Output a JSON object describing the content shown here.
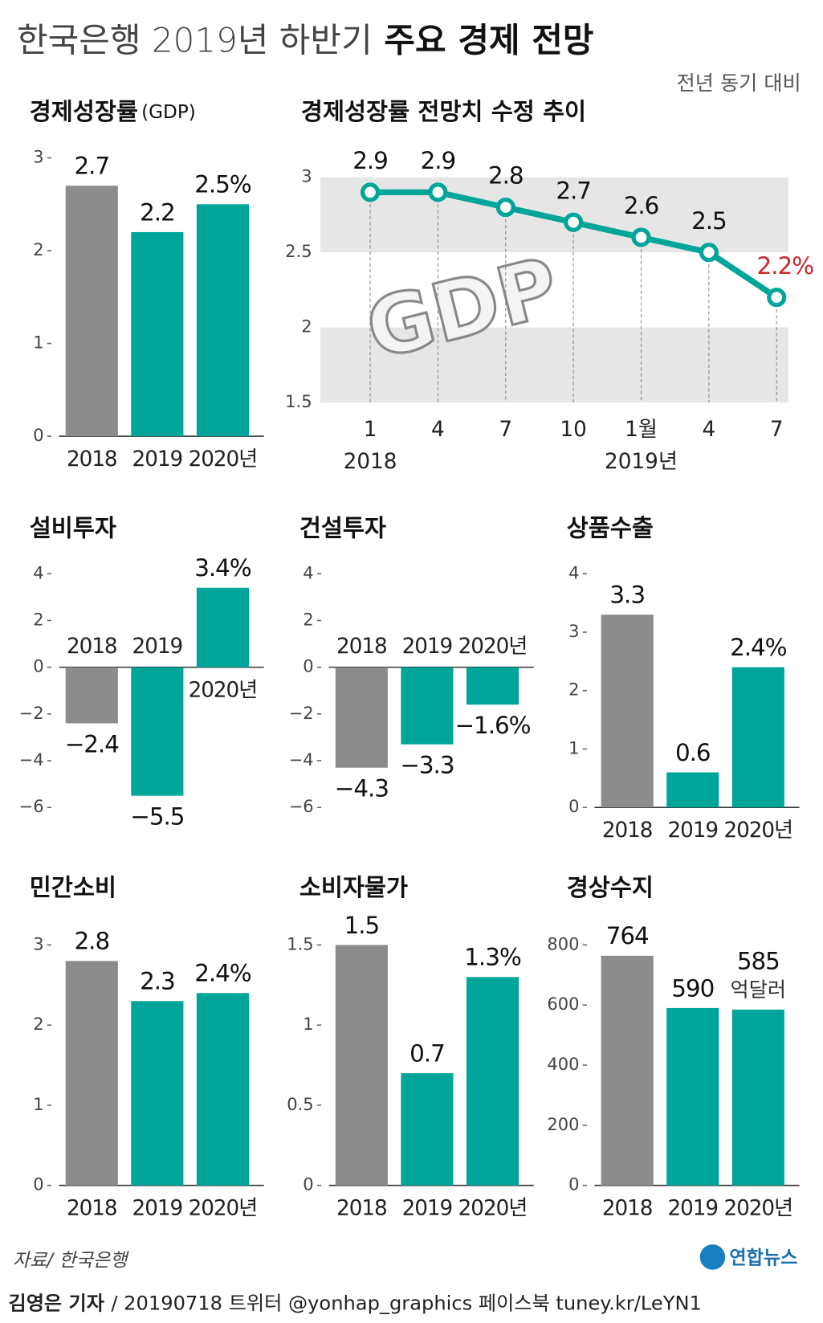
{
  "title": "한국은행 2019년 하반기",
  "title_emphasis": "주요 경제 전망",
  "note": "전년 동기 대비",
  "source": "자료/ 한국은행",
  "logo": "연합뉴스",
  "reporter": "김영은 기자",
  "credit": "/ 20190718  트위터 @yonhap_graphics  페이스북 tuney.kr/LeYN1",
  "chart_data": [
    {
      "type": "bar",
      "title": "경제성장률",
      "subtitle": "(GDP)",
      "categories": [
        "2018",
        "2019",
        "2020년"
      ],
      "values": [
        2.7,
        2.2,
        2.5
      ],
      "value_labels": [
        "2.7",
        "2.2",
        "2.5%"
      ],
      "colors": [
        "#8c8c8c",
        "#00a59a",
        "#00a59a"
      ],
      "ylim": [
        0,
        3
      ],
      "yticks": [
        0,
        1,
        2,
        3
      ]
    },
    {
      "type": "line",
      "title": "경제성장률 전망치 수정 추이",
      "categories": [
        "1",
        "4",
        "7",
        "10",
        "1월",
        "4",
        "7"
      ],
      "year_labels": [
        "2018",
        "2019년"
      ],
      "values": [
        2.9,
        2.9,
        2.8,
        2.7,
        2.6,
        2.5,
        2.2
      ],
      "value_labels": [
        "2.9",
        "2.9",
        "2.8",
        "2.7",
        "2.6",
        "2.5",
        "2.2%"
      ],
      "color": "#00a59a",
      "last_label_color": "#c8282d",
      "illustration_text": "GDP",
      "ylim": [
        1.5,
        3
      ],
      "yticks": [
        1.5,
        2,
        2.5,
        3
      ]
    },
    {
      "type": "bar",
      "title": "설비투자",
      "categories": [
        "2018",
        "2019",
        "2020년"
      ],
      "values": [
        -2.4,
        -5.5,
        3.4
      ],
      "value_labels": [
        "−2.4",
        "−5.5",
        "3.4%"
      ],
      "colors": [
        "#8c8c8c",
        "#00a59a",
        "#00a59a"
      ],
      "ylim": [
        -6,
        4
      ],
      "yticks": [
        {
          "value": -6,
          "label": "−6"
        },
        {
          "value": -4,
          "label": "−4"
        },
        {
          "value": -2,
          "label": "−2"
        },
        0,
        2,
        4
      ]
    },
    {
      "type": "bar",
      "title": "건설투자",
      "categories": [
        "2018",
        "2019",
        "2020년"
      ],
      "values": [
        -4.3,
        -3.3,
        -1.6
      ],
      "value_labels": [
        "−4.3",
        "−3.3",
        "−1.6%"
      ],
      "colors": [
        "#8c8c8c",
        "#00a59a",
        "#00a59a"
      ],
      "ylim": [
        -6,
        4
      ],
      "yticks": [
        {
          "value": -6,
          "label": "−6"
        },
        {
          "value": -4,
          "label": "−4"
        },
        {
          "value": -2,
          "label": "−2"
        },
        0,
        2,
        4
      ]
    },
    {
      "type": "bar",
      "title": "상품수출",
      "categories": [
        "2018",
        "2019",
        "2020년"
      ],
      "values": [
        3.3,
        0.6,
        2.4
      ],
      "value_labels": [
        "3.3",
        "0.6",
        "2.4%"
      ],
      "colors": [
        "#8c8c8c",
        "#00a59a",
        "#00a59a"
      ],
      "ylim": [
        0,
        4
      ],
      "yticks": [
        0,
        1,
        2,
        3,
        4
      ]
    },
    {
      "type": "bar",
      "title": "민간소비",
      "categories": [
        "2018",
        "2019",
        "2020년"
      ],
      "values": [
        2.8,
        2.3,
        2.4
      ],
      "value_labels": [
        "2.8",
        "2.3",
        "2.4%"
      ],
      "colors": [
        "#8c8c8c",
        "#00a59a",
        "#00a59a"
      ],
      "ylim": [
        0,
        3
      ],
      "yticks": [
        0,
        1,
        2,
        3
      ]
    },
    {
      "type": "bar",
      "title": "소비자물가",
      "categories": [
        "2018",
        "2019",
        "2020년"
      ],
      "values": [
        1.5,
        0.7,
        1.3
      ],
      "value_labels": [
        "1.5",
        "0.7",
        "1.3%"
      ],
      "colors": [
        "#8c8c8c",
        "#00a59a",
        "#00a59a"
      ],
      "ylim": [
        0,
        1.5
      ],
      "yticks": [
        0,
        0.5,
        1,
        1.5
      ]
    },
    {
      "type": "bar",
      "title": "경상수지",
      "unit_label": "억달러",
      "categories": [
        "2018",
        "2019",
        "2020년"
      ],
      "values": [
        764,
        590,
        585
      ],
      "colors": [
        "#8c8c8c",
        "#00a59a",
        "#00a59a"
      ],
      "ylim": [
        0,
        800
      ],
      "yticks": [
        0,
        200,
        400,
        600,
        800
      ]
    }
  ]
}
